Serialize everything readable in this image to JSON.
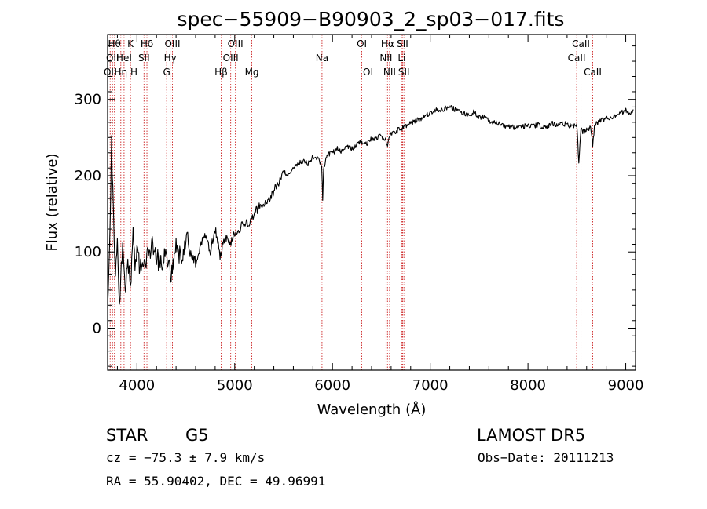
{
  "chart_data": {
    "type": "line",
    "title": "spec−55909−B90903_2_sp03−017.fits",
    "xlabel": "Wavelength (Å)",
    "ylabel": "Flux (relative)",
    "xlim": [
      3700,
      9100
    ],
    "ylim": [
      -55,
      385
    ],
    "x_ticks": [
      4000,
      5000,
      6000,
      7000,
      8000,
      9000
    ],
    "y_ticks": [
      0,
      100,
      200,
      300
    ],
    "grid": false,
    "colors": {
      "line": "#000000",
      "marker": "#cc2222"
    },
    "series": [
      {
        "x": [
          3700,
          3720,
          3740,
          3760,
          3780,
          3800,
          3820,
          3840,
          3860,
          3880,
          3900,
          3920,
          3940,
          3960,
          3980,
          4000,
          4050,
          4100,
          4150,
          4200,
          4250,
          4300,
          4350,
          4400,
          4450,
          4500,
          4550,
          4600,
          4650,
          4700,
          4750,
          4800,
          4850,
          4900,
          4950,
          5000,
          5050,
          5100,
          5150,
          5200,
          5250,
          5300,
          5350,
          5400,
          5450,
          5500,
          5550,
          5600,
          5650,
          5700,
          5750,
          5800,
          5850,
          5890,
          5900,
          5910,
          5950,
          6000,
          6050,
          6100,
          6150,
          6200,
          6250,
          6300,
          6350,
          6400,
          6450,
          6500,
          6550,
          6563,
          6580,
          6600,
          6650,
          6700,
          6750,
          6800,
          6850,
          6900,
          6950,
          7000,
          7050,
          7100,
          7150,
          7200,
          7250,
          7300,
          7350,
          7400,
          7450,
          7500,
          7550,
          7600,
          7650,
          7700,
          7750,
          7800,
          7850,
          7900,
          7950,
          8000,
          8050,
          8100,
          8150,
          8200,
          8250,
          8300,
          8350,
          8400,
          8450,
          8498,
          8520,
          8542,
          8560,
          8600,
          8640,
          8662,
          8680,
          8700,
          8750,
          8800,
          8850,
          8900,
          8950,
          9000,
          9050,
          9080
        ],
        "y": [
          20,
          110,
          240,
          150,
          60,
          130,
          30,
          80,
          110,
          40,
          90,
          70,
          60,
          120,
          80,
          100,
          70,
          90,
          110,
          95,
          80,
          100,
          70,
          110,
          90,
          120,
          100,
          85,
          110,
          120,
          100,
          130,
          95,
          120,
          110,
          125,
          130,
          140,
          135,
          150,
          160,
          165,
          170,
          180,
          190,
          205,
          200,
          210,
          215,
          220,
          215,
          225,
          222,
          215,
          170,
          210,
          228,
          230,
          235,
          232,
          238,
          236,
          240,
          245,
          242,
          248,
          250,
          252,
          246,
          238,
          252,
          256,
          258,
          262,
          265,
          268,
          272,
          275,
          278,
          282,
          285,
          286,
          288,
          290,
          287,
          284,
          282,
          280,
          283,
          276,
          278,
          272,
          270,
          268,
          266,
          265,
          264,
          262,
          264,
          266,
          265,
          267,
          263,
          265,
          268,
          266,
          270,
          266,
          265,
          266,
          220,
          262,
          258,
          260,
          262,
          240,
          265,
          268,
          272,
          275,
          276,
          280,
          282,
          285,
          283,
          286
        ]
      }
    ],
    "markers": [
      {
        "x": 3726,
        "label": "OII",
        "row": 2
      },
      {
        "x": 3750,
        "label": "OII",
        "row": 1
      },
      {
        "x": 3770,
        "label": "Hθ",
        "row": 0
      },
      {
        "x": 3835,
        "label": "Hη",
        "row": 2
      },
      {
        "x": 3868,
        "label": "HeI",
        "row": 1
      },
      {
        "x": 3889,
        "label": "",
        "row": 0
      },
      {
        "x": 3934,
        "label": "K",
        "row": 0
      },
      {
        "x": 3969,
        "label": "H",
        "row": 2
      },
      {
        "x": 4072,
        "label": "SII",
        "row": 1
      },
      {
        "x": 4102,
        "label": "Hδ",
        "row": 0
      },
      {
        "x": 4304,
        "label": "G",
        "row": 2
      },
      {
        "x": 4340,
        "label": "Hγ",
        "row": 1
      },
      {
        "x": 4363,
        "label": "OIII",
        "row": 0
      },
      {
        "x": 4861,
        "label": "Hβ",
        "row": 2
      },
      {
        "x": 4959,
        "label": "OIII",
        "row": 1
      },
      {
        "x": 5007,
        "label": "OIII",
        "row": 0
      },
      {
        "x": 5175,
        "label": "Mg",
        "row": 2
      },
      {
        "x": 5893,
        "label": "Na",
        "row": 1
      },
      {
        "x": 6300,
        "label": "OI",
        "row": 0
      },
      {
        "x": 6364,
        "label": "OI",
        "row": 2
      },
      {
        "x": 6548,
        "label": "NII",
        "row": 1
      },
      {
        "x": 6563,
        "label": "Hα",
        "row": 0
      },
      {
        "x": 6584,
        "label": "NII",
        "row": 2
      },
      {
        "x": 6708,
        "label": "Li",
        "row": 1
      },
      {
        "x": 6717,
        "label": "SII",
        "row": 0
      },
      {
        "x": 6731,
        "label": "SII",
        "row": 2
      },
      {
        "x": 8498,
        "label": "CaII",
        "row": 1
      },
      {
        "x": 8542,
        "label": "CaII",
        "row": 0
      },
      {
        "x": 8662,
        "label": "CaII",
        "row": 2
      }
    ]
  },
  "info": {
    "class_label": "STAR",
    "subclass": "G5",
    "survey": "LAMOST DR5",
    "cz": "cz = −75.3 ± 7.9 km/s",
    "obs_date": "Obs−Date: 20111213",
    "coords": "RA =  55.90402, DEC =  49.96991"
  }
}
